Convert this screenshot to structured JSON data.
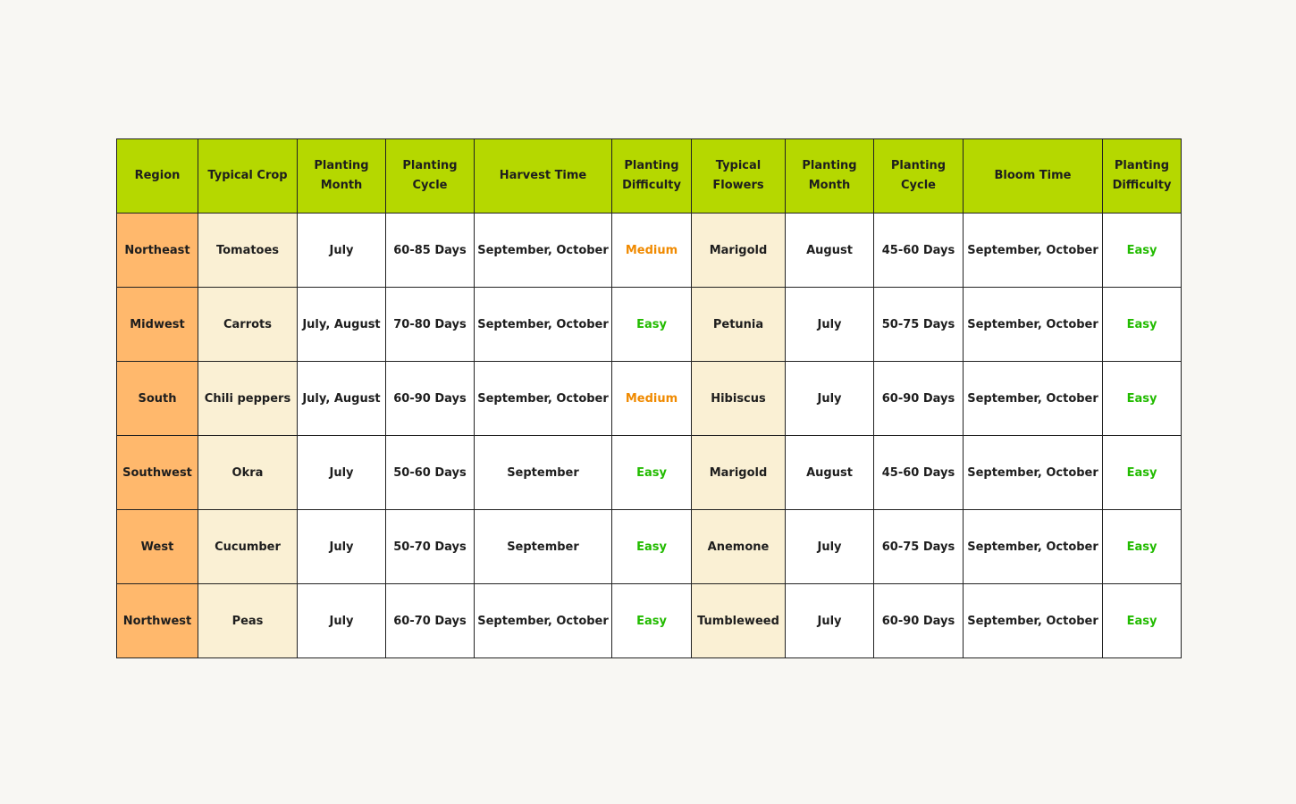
{
  "colors": {
    "header": "#b5d800",
    "region": "#ffb86c",
    "typical": "#faf0d4",
    "medium": "#f08a00",
    "easy": "#22bb00"
  },
  "headers": [
    "Region",
    "Typical Crop",
    "Planting Month",
    "Planting Cycle",
    "Harvest Time",
    "Planting Difficulty",
    "Typical Flowers",
    "Planting Month",
    "Planting Cycle",
    "Bloom Time",
    "Planting Difficulty"
  ],
  "rows": [
    [
      "Northeast",
      "Tomatoes",
      "July",
      "60-85 Days",
      "September, October",
      "Medium",
      "Marigold",
      "August",
      "45-60 Days",
      "September, October",
      "Easy"
    ],
    [
      "Midwest",
      "Carrots",
      "July, August",
      "70-80 Days",
      "September, October",
      "Easy",
      "Petunia",
      "July",
      "50-75 Days",
      "September, October",
      "Easy"
    ],
    [
      "South",
      "Chili peppers",
      "July, August",
      "60-90 Days",
      "September, October",
      "Medium",
      "Hibiscus",
      "July",
      "60-90 Days",
      "September, October",
      "Easy"
    ],
    [
      "Southwest",
      "Okra",
      "July",
      "50-60 Days",
      "September",
      "Easy",
      "Marigold",
      "August",
      "45-60 Days",
      "September, October",
      "Easy"
    ],
    [
      "West",
      "Cucumber",
      "July",
      "50-70 Days",
      "September",
      "Easy",
      "Anemone",
      "July",
      "60-75 Days",
      "September, October",
      "Easy"
    ],
    [
      "Northwest",
      "Peas",
      "July",
      "60-70 Days",
      "September, October",
      "Easy",
      "Tumbleweed",
      "July",
      "60-90 Days",
      "September, October",
      "Easy"
    ]
  ]
}
